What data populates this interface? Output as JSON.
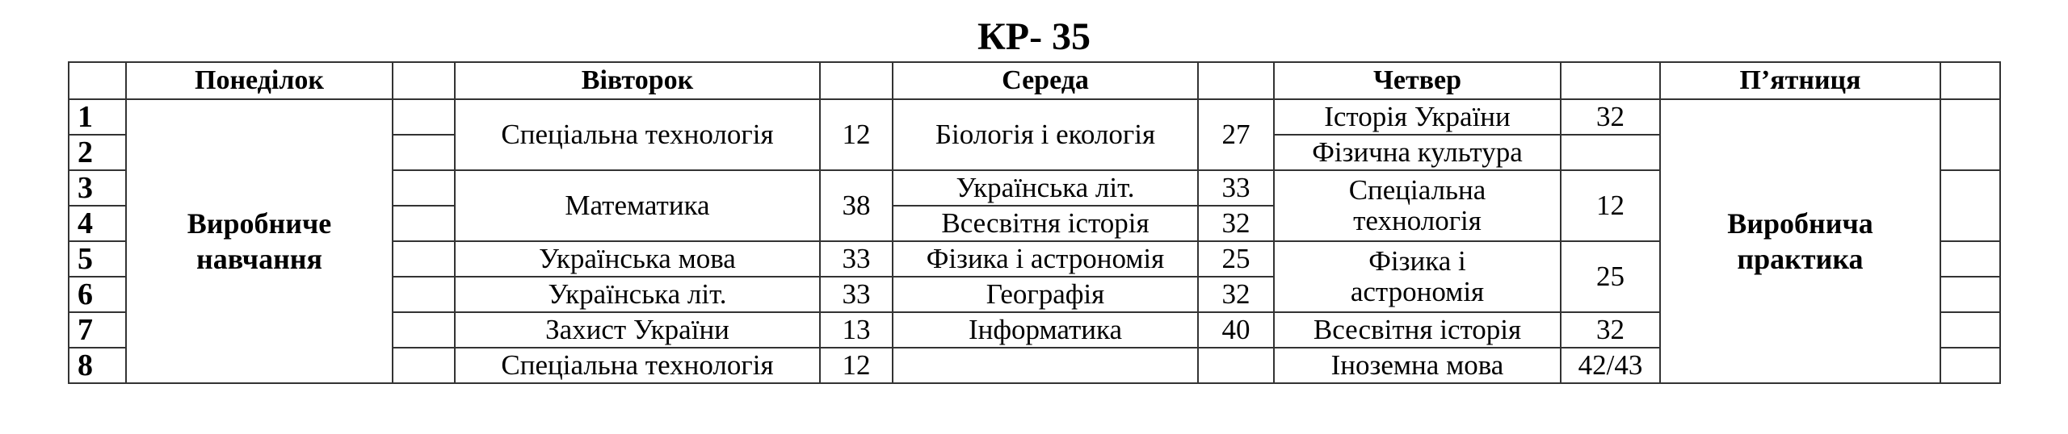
{
  "title": "КР- 35",
  "days": [
    "Понеділок",
    "Вівторок",
    "Середа",
    "Четвер",
    "П’ятниця"
  ],
  "lessons": [
    "1",
    "2",
    "3",
    "4",
    "5",
    "6",
    "7",
    "8"
  ],
  "monday": {
    "line1": "Виробниче",
    "line2": "навчання"
  },
  "friday": {
    "line1": "Виробнича",
    "line2": "практика"
  },
  "tuesday": [
    {
      "subject": "Спеціальна технологія",
      "room": "12"
    },
    {
      "subject": "Математика",
      "room": "38"
    },
    {
      "subject": "Українська мова",
      "room": "33"
    },
    {
      "subject": "Українська літ.",
      "room": "33"
    },
    {
      "subject": "Захист України",
      "room": "13"
    },
    {
      "subject": "Спеціальна технологія",
      "room": "12"
    }
  ],
  "wednesday": [
    {
      "subject": "Біологія і екологія",
      "room": "27"
    },
    {
      "subject": "Українська літ.",
      "room": "33"
    },
    {
      "subject": "Всесвітня історія",
      "room": "32"
    },
    {
      "subject": "Фізика і астрономія",
      "room": "25"
    },
    {
      "subject": "Географія",
      "room": "32"
    },
    {
      "subject": "Інформатика",
      "room": "40"
    }
  ],
  "thursday": [
    {
      "subject": "Історія  України",
      "room": "32"
    },
    {
      "subject": "Фізична культура",
      "room": ""
    },
    {
      "line1": "Спеціальна",
      "line2": "технологія",
      "room": "12"
    },
    {
      "line1": "Фізика і",
      "line2": "астрономія",
      "room": "25"
    },
    {
      "subject": "Всесвітня історія",
      "room": "32"
    },
    {
      "subject": "Іноземна  мова",
      "room": "42/43"
    }
  ]
}
